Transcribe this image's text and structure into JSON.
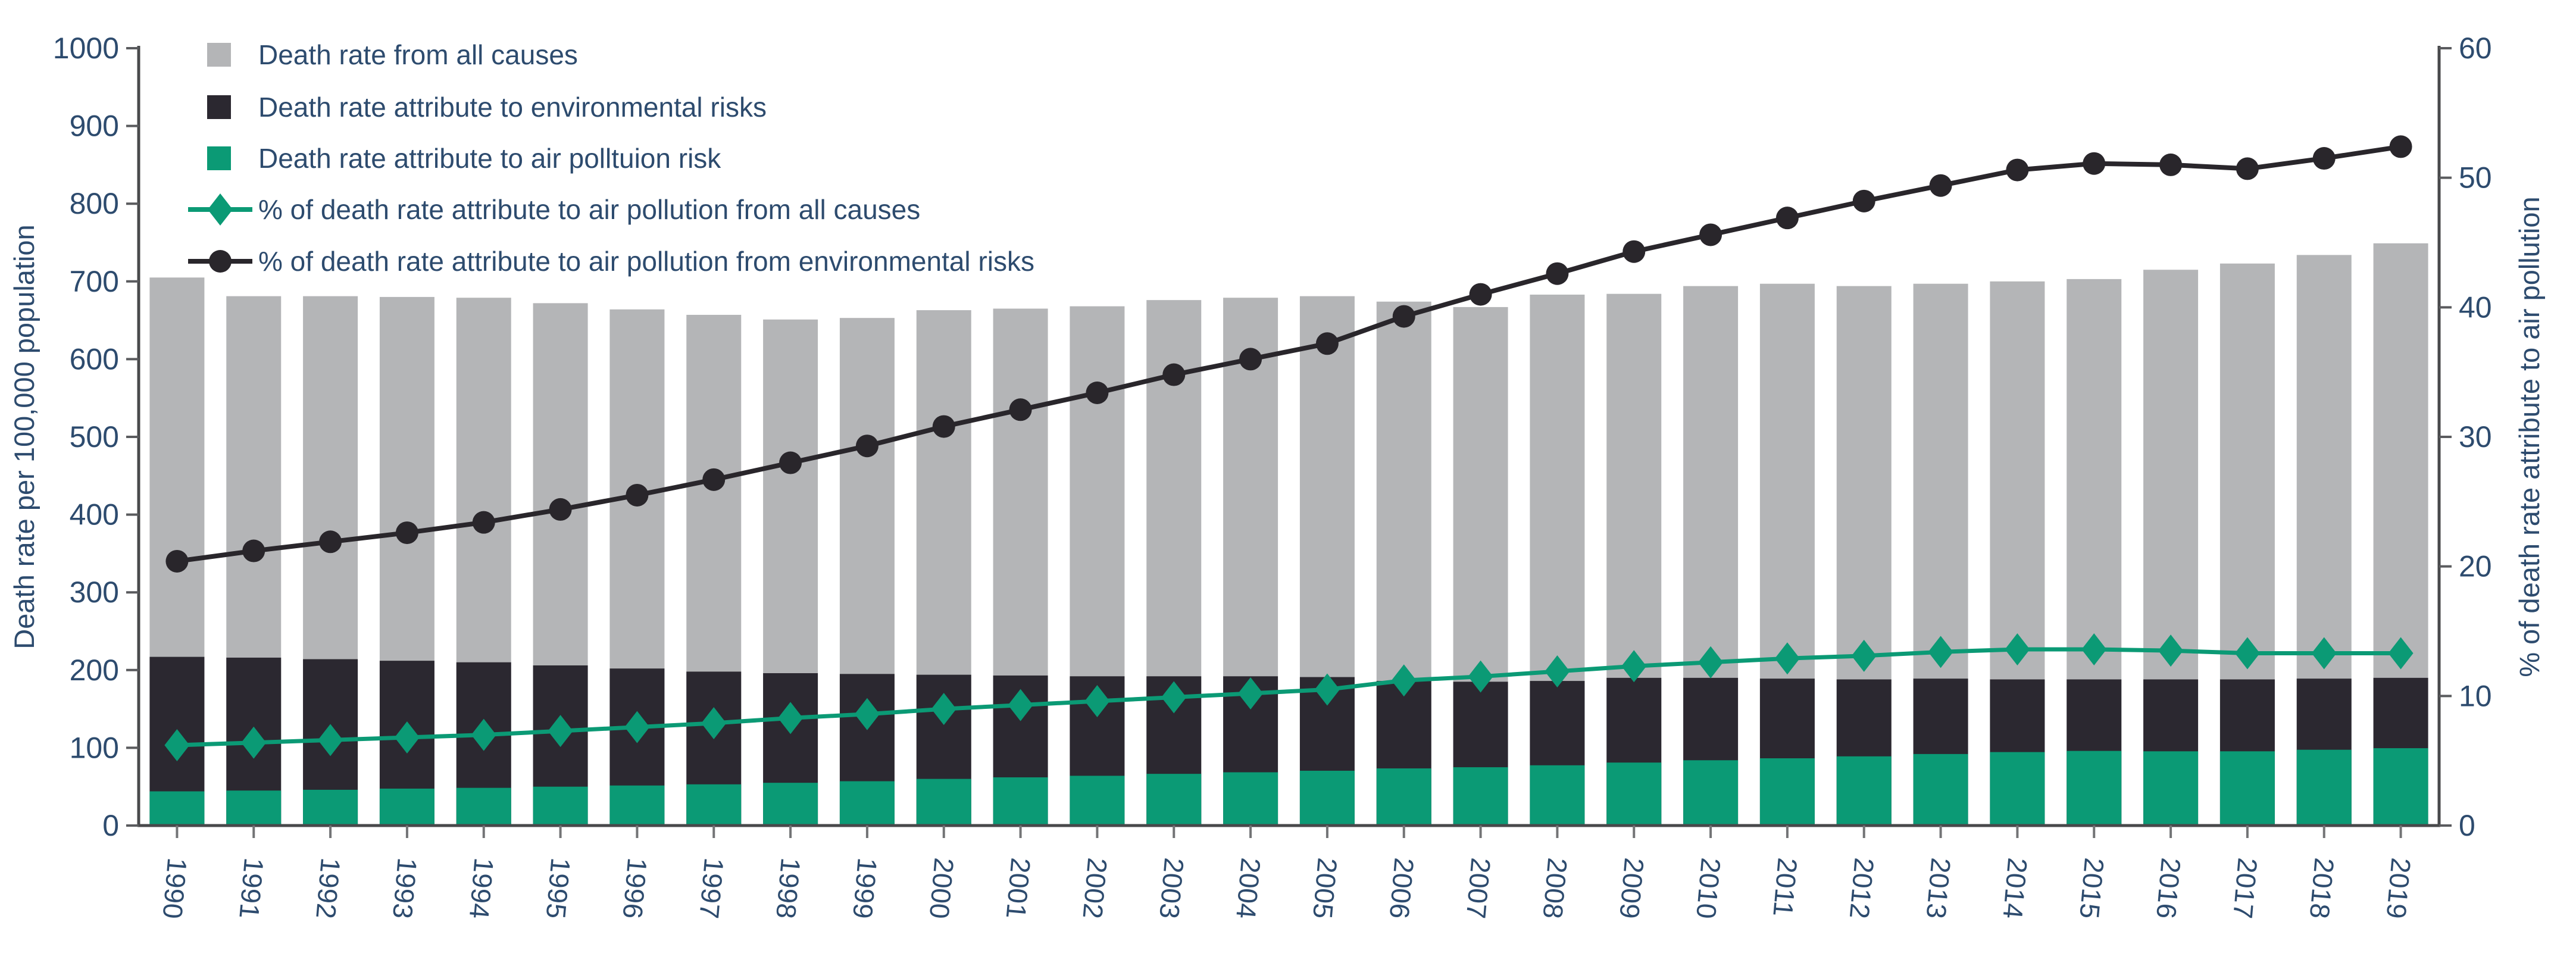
{
  "chart_data": {
    "type": "bar+line",
    "title": "",
    "x": [
      1990,
      1991,
      1992,
      1993,
      1994,
      1995,
      1996,
      1997,
      1998,
      1999,
      2000,
      2001,
      2002,
      2003,
      2004,
      2005,
      2006,
      2007,
      2008,
      2009,
      2010,
      2011,
      2012,
      2013,
      2014,
      2015,
      2016,
      2017,
      2018,
      2019
    ],
    "bar_series": [
      {
        "name": "Death rate from all causes",
        "color": "#b4b5b7",
        "values": [
          705,
          681,
          681,
          680,
          679,
          672,
          664,
          657,
          651,
          653,
          663,
          665,
          668,
          676,
          679,
          681,
          674,
          667,
          683,
          684,
          694,
          697,
          694,
          697,
          700,
          703,
          715,
          723,
          734,
          749
        ]
      },
      {
        "name": "Death rate attribute to environmental risks",
        "color": "#2b2830",
        "values": [
          217,
          216,
          214,
          212,
          210,
          206,
          202,
          198,
          196,
          195,
          194,
          193,
          192,
          192,
          192,
          191,
          186,
          185,
          186,
          190,
          190,
          189,
          188,
          189,
          188,
          188,
          188,
          188,
          189,
          190
        ]
      },
      {
        "name": "Death rate attribute to air polltuion risk",
        "color": "#0b9a75",
        "values": [
          44,
          45,
          46,
          47.5,
          48.5,
          50,
          51.5,
          53,
          55,
          57,
          60,
          62,
          64,
          66.5,
          68.5,
          70.5,
          73.5,
          75,
          77.5,
          81,
          84,
          86.5,
          89,
          92,
          94.5,
          96,
          95.5,
          95.5,
          97.5,
          99.5
        ]
      }
    ],
    "line_series": [
      {
        "name": "% of death rate attribute to air pollution from all causes",
        "color": "#0b9a75",
        "marker": "diamond",
        "values": [
          6.2,
          6.4,
          6.6,
          6.8,
          7.0,
          7.3,
          7.6,
          7.9,
          8.3,
          8.6,
          9.0,
          9.3,
          9.6,
          9.9,
          10.2,
          10.5,
          11.2,
          11.5,
          11.9,
          12.3,
          12.6,
          12.9,
          13.1,
          13.4,
          13.6,
          13.6,
          13.5,
          13.3,
          13.3,
          13.3
        ]
      },
      {
        "name": "% of death rate attribute to air pollution from environmental risks",
        "color": "#29262b",
        "marker": "circle",
        "values": [
          20.4,
          21.2,
          21.9,
          22.6,
          23.4,
          24.4,
          25.5,
          26.7,
          28.0,
          29.3,
          30.8,
          32.1,
          33.4,
          34.8,
          36.0,
          37.2,
          39.3,
          41.0,
          42.6,
          44.3,
          45.6,
          46.9,
          48.2,
          49.4,
          50.6,
          51.1,
          51.0,
          50.7,
          51.5,
          52.4
        ]
      }
    ],
    "left_axis": {
      "label": "Death rate per 100,000 population",
      "min": 0,
      "max": 1000,
      "tick_step": 100,
      "tick_labels": [
        "0",
        "100",
        "200",
        "300",
        "400",
        "500",
        "600",
        "700",
        "800",
        "900",
        "1000"
      ]
    },
    "right_axis": {
      "label": "% of death rate attribute to air pollution",
      "min": 0,
      "max": 60,
      "tick_step": 10,
      "tick_labels": [
        "0",
        "10",
        "20",
        "30",
        "40",
        "50",
        "60"
      ]
    },
    "legend_position": "top-left",
    "grid": false
  },
  "colors": {
    "text": "#2d4b6e",
    "spine": "#48494b",
    "left_tick": "#5a5b5e",
    "bottom_tick": "#737476",
    "background": "#ffffff"
  }
}
